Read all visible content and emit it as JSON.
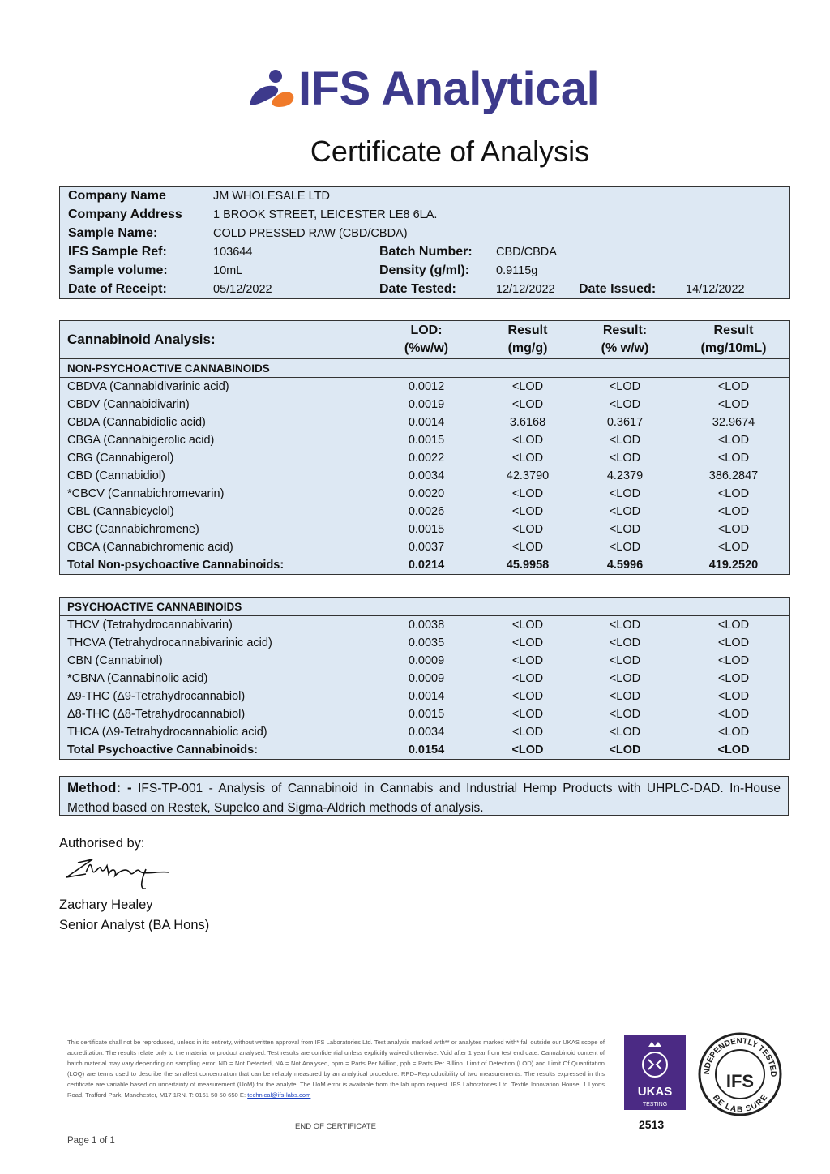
{
  "header": {
    "brand": "IFS Analytical",
    "title": "Certificate of Analysis"
  },
  "info": {
    "rows": [
      [
        {
          "label": "Company Name",
          "value": "JM WHOLESALE LTD"
        }
      ],
      [
        {
          "label": "Company Address",
          "value": "1 BROOK STREET, LEICESTER LE8 6LA."
        }
      ],
      [
        {
          "label": "Sample Name:",
          "value": "COLD PRESSED RAW (CBD/CBDA)"
        }
      ],
      [
        {
          "label": "IFS Sample Ref:",
          "value": "103644"
        },
        {
          "label": "Batch Number:",
          "value": "CBD/CBDA"
        }
      ],
      [
        {
          "label": "Sample volume:",
          "value": "10mL"
        },
        {
          "label": "Density (g/ml):",
          "value": "0.9115g"
        }
      ],
      [
        {
          "label": "Date of Receipt:",
          "value": "05/12/2022"
        },
        {
          "label": "Date Tested:",
          "value": "12/12/2022"
        },
        {
          "label": "Date Issued:",
          "value": "14/12/2022"
        }
      ]
    ]
  },
  "analysis": {
    "columns": [
      [
        "Cannabinoid Analysis:"
      ],
      [
        "LOD:",
        "(%w/w)"
      ],
      [
        "Result",
        "(mg/g)"
      ],
      [
        "Result:",
        "(% w/w)"
      ],
      [
        "Result",
        "(mg/10mL)"
      ]
    ],
    "non_psychoactive": {
      "heading": "NON-PSYCHOACTIVE CANNABINOIDS",
      "rows": [
        [
          "CBDVA (Cannabidivarinic acid)",
          "0.0012",
          "<LOD",
          "<LOD",
          "<LOD"
        ],
        [
          "CBDV (Cannabidivarin)",
          "0.0019",
          "<LOD",
          "<LOD",
          "<LOD"
        ],
        [
          "CBDA (Cannabidiolic acid)",
          "0.0014",
          "3.6168",
          "0.3617",
          "32.9674"
        ],
        [
          "CBGA (Cannabigerolic acid)",
          "0.0015",
          "<LOD",
          "<LOD",
          "<LOD"
        ],
        [
          "CBG (Cannabigerol)",
          "0.0022",
          "<LOD",
          "<LOD",
          "<LOD"
        ],
        [
          "CBD (Cannabidiol)",
          "0.0034",
          "42.3790",
          "4.2379",
          "386.2847"
        ],
        [
          "*CBCV (Cannabichromevarin)",
          "0.0020",
          "<LOD",
          "<LOD",
          "<LOD"
        ],
        [
          "CBL (Cannabicyclol)",
          "0.0026",
          "<LOD",
          "<LOD",
          "<LOD"
        ],
        [
          "CBC (Cannabichromene)",
          "0.0015",
          "<LOD",
          "<LOD",
          "<LOD"
        ],
        [
          "CBCA (Cannabichromenic acid)",
          "0.0037",
          "<LOD",
          "<LOD",
          "<LOD"
        ]
      ],
      "total": [
        "Total Non-psychoactive Cannabinoids:",
        "0.0214",
        "45.9958",
        "4.5996",
        "419.2520"
      ]
    },
    "psychoactive": {
      "heading": "PSYCHOACTIVE CANNABINOIDS",
      "rows": [
        [
          "THCV (Tetrahydrocannabivarin)",
          "0.0038",
          "<LOD",
          "<LOD",
          "<LOD"
        ],
        [
          "THCVA (Tetrahydrocannabivarinic acid)",
          "0.0035",
          "<LOD",
          "<LOD",
          "<LOD"
        ],
        [
          "CBN (Cannabinol)",
          "0.0009",
          "<LOD",
          "<LOD",
          "<LOD"
        ],
        [
          "*CBNA (Cannabinolic acid)",
          "0.0009",
          "<LOD",
          "<LOD",
          "<LOD"
        ],
        [
          "Δ9-THC (Δ9-Tetrahydrocannabiol)",
          "0.0014",
          "<LOD",
          "<LOD",
          "<LOD"
        ],
        [
          "Δ8-THC (Δ8-Tetrahydrocannabiol)",
          "0.0015",
          "<LOD",
          "<LOD",
          "<LOD"
        ],
        [
          "THCA (Δ9-Tetrahydrocannabiolic acid)",
          "0.0034",
          "<LOD",
          "<LOD",
          "<LOD"
        ]
      ],
      "total": [
        "Total Psychoactive Cannabinoids:",
        "0.0154",
        "<LOD",
        "<LOD",
        "<LOD"
      ]
    }
  },
  "method": {
    "label": "Method: -",
    "text": "IFS-TP-001 - Analysis of Cannabinoid in Cannabis and Industrial Hemp Products with UHPLC-DAD. In-House Method based on Restek, Supelco and Sigma-Aldrich methods of analysis."
  },
  "authorisation": {
    "label": "Authorised by:",
    "name": "Zachary Healey",
    "role": "Senior Analyst (BA Hons)"
  },
  "footer": {
    "disclaimer": "This certificate shall not be reproduced, unless in its entirety, without written approval from IFS Laboratories Ltd. Test analysis marked with** or analytes marked with* fall outside our UKAS scope of accreditation. The results relate only to the material or product analysed. Test results are confidential unless explicitly waived otherwise. Void after 1 year from test end date. Cannabinoid content of batch material may vary depending on sampling error. ND = Not Detected, NA = Not Analysed, ppm = Parts Per Million, ppb = Parts Per Billion. Limit of Detection (LOD) and Limit Of Quantitation (LOQ) are terms used to describe the smallest concentration that can be reliably measured by an analytical procedure. RPD=Reproducibility of two measurements. The results expressed in this certificate are variable based on uncertainty of measurement (UoM) for the analyte. The UoM error is available from the lab upon request. IFS Laboratories Ltd. Textile Innovation House, 1 Lyons Road, Trafford Park, Manchester, M17 1RN. T: 0161 50 50 650 E:",
    "email": "technical@ifs-labs.com",
    "end": "END OF CERTIFICATE",
    "page": "Page 1 of 1"
  },
  "badges": {
    "ukas": "UKAS",
    "ukas_sub": "TESTING",
    "ukas_number": "2513",
    "seal_top": "INDEPENDENTLY TESTED",
    "seal_center": "IFS",
    "seal_bottom": "BE LAB SURE"
  }
}
